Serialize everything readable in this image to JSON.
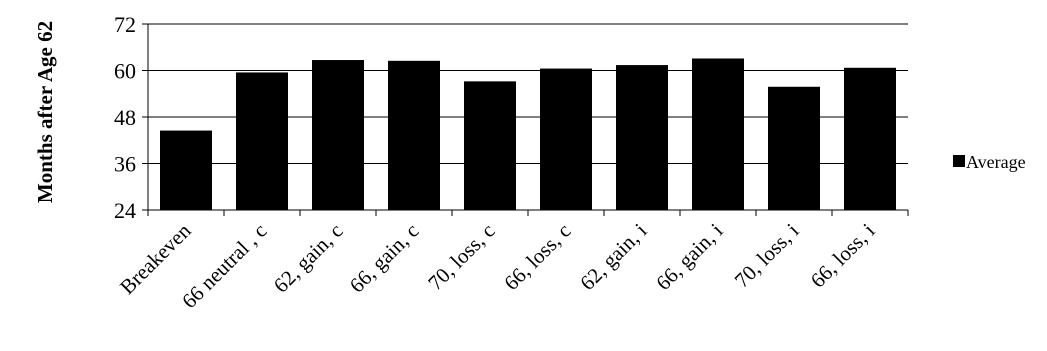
{
  "chart_data": {
    "type": "bar",
    "ylabel": "Months after Age 62",
    "xlabel": "",
    "title": "",
    "ylim": [
      24,
      72
    ],
    "yticks": [
      24,
      36,
      48,
      60,
      72
    ],
    "grid": "horizontal",
    "legend_position": "right",
    "categories": [
      "Breakeven",
      "66 neutral , c",
      "62, gain, c",
      "66, gain, c",
      "70, loss, c",
      "66, loss, c",
      "62, gain, i",
      "66, gain, i",
      "70, loss, i",
      "66, loss, i"
    ],
    "series": [
      {
        "name": "Average",
        "color": "#000000",
        "values": [
          44.5,
          59.5,
          62.7,
          62.5,
          57.2,
          60.5,
          61.4,
          63.1,
          55.8,
          60.7
        ]
      }
    ]
  }
}
